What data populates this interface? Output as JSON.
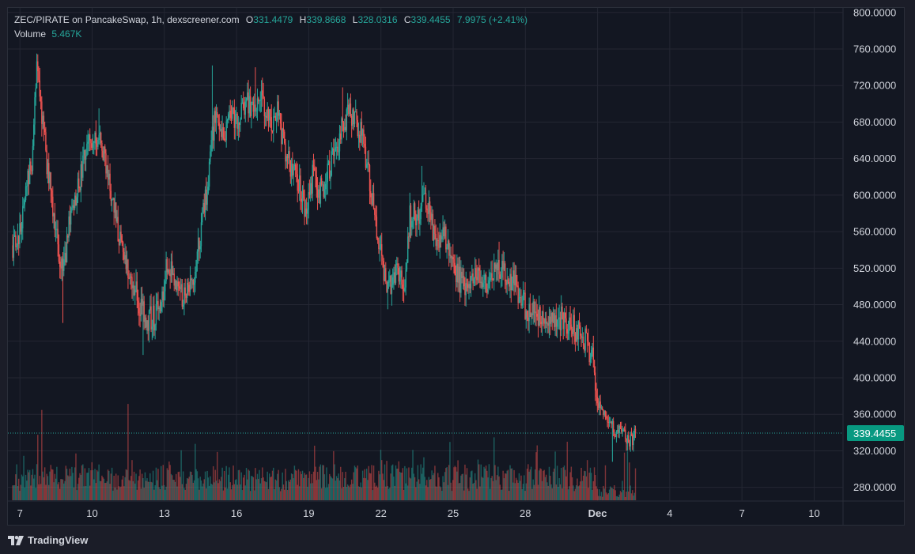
{
  "header": {
    "title": "ZEC/PIRATE on PancakeSwap, 1h, dexscreener.com",
    "open_label": "O",
    "open": "331.4479",
    "high_label": "H",
    "high": "339.8668",
    "low_label": "L",
    "low": "328.0316",
    "close_label": "C",
    "close": "339.4455",
    "change": "7.9975 (+2.41%)",
    "volume_label": "Volume",
    "volume": "5.467K"
  },
  "brand": {
    "name": "TradingView",
    "icon": "tradingview-logo-icon"
  },
  "colors": {
    "up": "#26a69a",
    "down": "#ef5350",
    "background": "#131722",
    "grid": "#242733",
    "text": "#d1d4dc",
    "price_tag": "#089981"
  },
  "chart_data": {
    "type": "candlestick",
    "symbol": "ZEC/PIRATE",
    "exchange": "PancakeSwap",
    "interval": "1h",
    "source": "dexscreener.com",
    "y_range": [
      265,
      805
    ],
    "y_ticks": [
      "800.0000",
      "760.0000",
      "720.0000",
      "680.0000",
      "640.0000",
      "600.0000",
      "560.0000",
      "520.0000",
      "480.0000",
      "440.0000",
      "400.0000",
      "360.0000",
      "320.0000",
      "280.0000"
    ],
    "x_ticks": [
      "7",
      "10",
      "13",
      "16",
      "19",
      "22",
      "25",
      "28",
      "Dec",
      "4",
      "7",
      "10"
    ],
    "x_tick_days": [
      7,
      10,
      13,
      16,
      19,
      22,
      25,
      28,
      31,
      34,
      37,
      40
    ],
    "data_start_day": 6.7,
    "data_end_day": 32.6,
    "x_range_days": [
      6.5,
      41.2
    ],
    "current_price": 339.4455,
    "current_price_label": "339.4455",
    "price_path": [
      [
        6.7,
        545
      ],
      [
        7.0,
        560
      ],
      [
        7.3,
        610
      ],
      [
        7.5,
        640
      ],
      [
        7.7,
        735
      ],
      [
        7.9,
        690
      ],
      [
        8.1,
        640
      ],
      [
        8.3,
        600
      ],
      [
        8.6,
        540
      ],
      [
        8.8,
        515
      ],
      [
        9.0,
        560
      ],
      [
        9.3,
        590
      ],
      [
        9.6,
        630
      ],
      [
        9.9,
        660
      ],
      [
        10.2,
        665
      ],
      [
        10.5,
        640
      ],
      [
        10.8,
        600
      ],
      [
        11.1,
        560
      ],
      [
        11.4,
        525
      ],
      [
        11.7,
        500
      ],
      [
        12.0,
        480
      ],
      [
        12.3,
        465
      ],
      [
        12.6,
        465
      ],
      [
        12.9,
        490
      ],
      [
        13.1,
        520
      ],
      [
        13.4,
        510
      ],
      [
        13.7,
        490
      ],
      [
        14.0,
        495
      ],
      [
        14.3,
        520
      ],
      [
        14.6,
        575
      ],
      [
        14.8,
        610
      ],
      [
        15.1,
        690
      ],
      [
        15.4,
        660
      ],
      [
        15.7,
        690
      ],
      [
        16.1,
        685
      ],
      [
        16.4,
        705
      ],
      [
        16.7,
        690
      ],
      [
        17.0,
        710
      ],
      [
        17.4,
        680
      ],
      [
        17.7,
        690
      ],
      [
        18.0,
        650
      ],
      [
        18.3,
        630
      ],
      [
        18.6,
        610
      ],
      [
        18.9,
        575
      ],
      [
        19.2,
        630
      ],
      [
        19.4,
        600
      ],
      [
        19.6,
        610
      ],
      [
        19.9,
        630
      ],
      [
        20.1,
        650
      ],
      [
        20.4,
        675
      ],
      [
        20.7,
        690
      ],
      [
        21.0,
        680
      ],
      [
        21.2,
        665
      ],
      [
        21.5,
        620
      ],
      [
        21.7,
        585
      ],
      [
        22.0,
        540
      ],
      [
        22.2,
        500
      ],
      [
        22.4,
        505
      ],
      [
        22.7,
        520
      ],
      [
        23.0,
        505
      ],
      [
        23.2,
        575
      ],
      [
        23.5,
        580
      ],
      [
        23.8,
        590
      ],
      [
        24.0,
        580
      ],
      [
        24.3,
        545
      ],
      [
        24.6,
        560
      ],
      [
        24.9,
        525
      ],
      [
        25.2,
        510
      ],
      [
        25.5,
        495
      ],
      [
        25.8,
        505
      ],
      [
        26.1,
        515
      ],
      [
        26.4,
        505
      ],
      [
        26.7,
        520
      ],
      [
        26.9,
        525
      ],
      [
        27.2,
        510
      ],
      [
        27.5,
        505
      ],
      [
        27.8,
        490
      ],
      [
        28.1,
        470
      ],
      [
        28.4,
        470
      ],
      [
        28.7,
        460
      ],
      [
        29.0,
        465
      ],
      [
        29.3,
        468
      ],
      [
        29.6,
        462
      ],
      [
        29.9,
        458
      ],
      [
        30.2,
        450
      ],
      [
        30.5,
        440
      ],
      [
        30.8,
        420
      ],
      [
        31.0,
        375
      ],
      [
        31.2,
        360
      ],
      [
        31.5,
        355
      ],
      [
        31.7,
        340
      ],
      [
        32.0,
        345
      ],
      [
        32.2,
        330
      ],
      [
        32.4,
        332
      ],
      [
        32.6,
        339.4
      ]
    ],
    "spikes": [
      [
        7.7,
        755,
        "high"
      ],
      [
        8.8,
        460,
        "low"
      ],
      [
        10.3,
        695,
        "high"
      ],
      [
        12.1,
        425,
        "low"
      ],
      [
        15.0,
        742,
        "high"
      ],
      [
        16.8,
        740,
        "high"
      ],
      [
        20.4,
        718,
        "high"
      ],
      [
        22.3,
        475,
        "low"
      ],
      [
        23.7,
        632,
        "high"
      ],
      [
        26.9,
        549,
        "high"
      ],
      [
        31.6,
        308,
        "low"
      ]
    ],
    "volume": {
      "current": "5.467K",
      "max_bar_value": 42,
      "spikes": [
        [
          7.9,
          30
        ],
        [
          11.5,
          32
        ],
        [
          7.7,
          12
        ]
      ]
    }
  }
}
